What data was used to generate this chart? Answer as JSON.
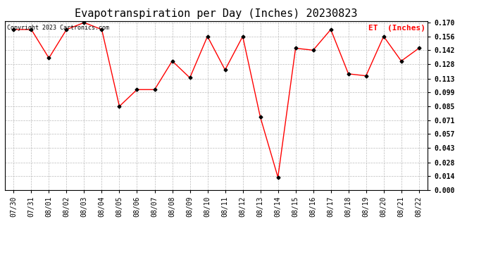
{
  "title": "Evapotranspiration per Day (Inches) 20230823",
  "copyright": "Copyright 2023 Cartronics.com",
  "legend_label": "ET  (Inches)",
  "dates": [
    "07/30",
    "07/31",
    "08/01",
    "08/02",
    "08/03",
    "08/04",
    "08/05",
    "08/06",
    "08/07",
    "08/08",
    "08/09",
    "08/10",
    "08/11",
    "08/12",
    "08/13",
    "08/14",
    "08/15",
    "08/16",
    "08/17",
    "08/18",
    "08/19",
    "08/20",
    "08/21",
    "08/22"
  ],
  "values": [
    0.163,
    0.163,
    0.134,
    0.163,
    0.17,
    0.163,
    0.085,
    0.102,
    0.102,
    0.131,
    0.114,
    0.156,
    0.122,
    0.156,
    0.074,
    0.013,
    0.144,
    0.142,
    0.163,
    0.118,
    0.116,
    0.156,
    0.131,
    0.144
  ],
  "ylim": [
    0.0,
    0.1715
  ],
  "yticks": [
    0.0,
    0.014,
    0.028,
    0.043,
    0.057,
    0.071,
    0.085,
    0.099,
    0.113,
    0.128,
    0.142,
    0.156,
    0.17
  ],
  "line_color": "red",
  "marker_color": "black",
  "marker": "D",
  "marker_size": 2.5,
  "line_width": 1.0,
  "title_fontsize": 11,
  "tick_fontsize": 7,
  "legend_color": "red",
  "legend_fontsize": 8,
  "copyright_fontsize": 6,
  "bg_color": "#ffffff",
  "grid_color": "#bbbbbb",
  "grid_style": "--"
}
